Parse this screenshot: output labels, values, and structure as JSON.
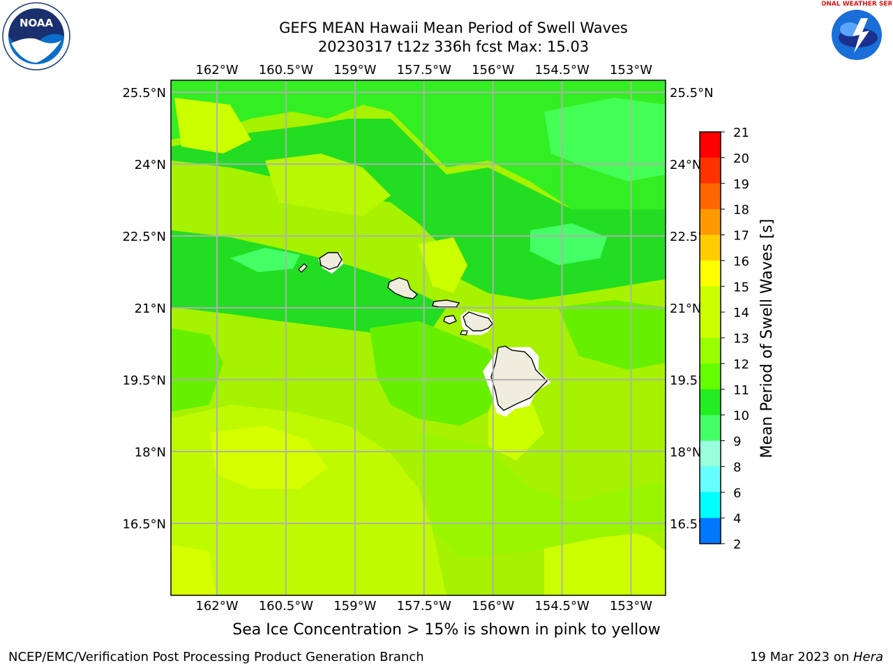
{
  "title": {
    "line1": "GEFS MEAN Hawaii Mean Period of Swell Waves",
    "line2": "20230317 t12z 336h fcst   Max: 15.03"
  },
  "map": {
    "lon_range": [
      -163.0,
      -152.25
    ],
    "lat_range": [
      15.0,
      25.75
    ],
    "lon_ticks": [
      "162°W",
      "160.5°W",
      "159°W",
      "157.5°W",
      "156°W",
      "154.5°W",
      "153°W"
    ],
    "lon_tick_values": [
      -162,
      -160.5,
      -159,
      -157.5,
      -156,
      -154.5,
      -153
    ],
    "lat_ticks": [
      "25.5°N",
      "24°N",
      "22.5°N",
      "21°N",
      "19.5°N",
      "18°N",
      "16.5°N"
    ],
    "lat_tick_values": [
      25.5,
      24,
      22.5,
      21,
      19.5,
      18,
      16.5
    ],
    "gridlines": true
  },
  "colorbar": {
    "label": "Mean Period of Swell Waves [s]",
    "ticks": [
      "21",
      "20",
      "19",
      "18",
      "17",
      "16",
      "15",
      "14",
      "13",
      "12",
      "11",
      "10",
      "9",
      "8",
      "6",
      "4",
      "2"
    ],
    "colors": [
      "#ff0000",
      "#ff3300",
      "#ff6600",
      "#ff9900",
      "#ffcc00",
      "#ffff00",
      "#ccff00",
      "#ccff00",
      "#99ff00",
      "#66ff00",
      "#22ee22",
      "#44ff66",
      "#99ffdd",
      "#66ffff",
      "#00ffff",
      "#0077ff",
      "#0000ff"
    ]
  },
  "caption": "Sea Ice Concentration > 15% is shown in pink to yellow",
  "footer": {
    "left": "NCEP/EMC/Verification Post Processing Product Generation Branch",
    "right_prefix": "19 Mar 2023 on ",
    "right_host": "Hera"
  },
  "logos": {
    "noaa_text": "NOAA",
    "nws_text": "NATIONAL WEATHER SERVICE"
  }
}
